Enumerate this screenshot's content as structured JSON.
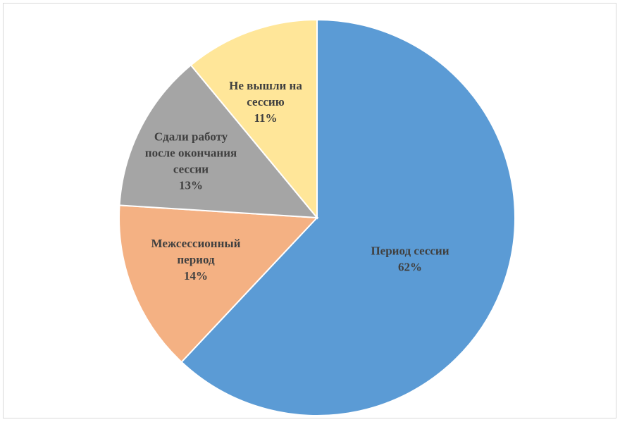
{
  "chart_data": {
    "type": "pie",
    "title": "",
    "slices": [
      {
        "label_lines": [
          "Период сессии"
        ],
        "value": 62,
        "value_label": "62%",
        "color": "#5b9bd5"
      },
      {
        "label_lines": [
          "Межсессионный",
          "период"
        ],
        "value": 14,
        "value_label": "14%",
        "color": "#f4b183"
      },
      {
        "label_lines": [
          "Сдали работу",
          "после окончания",
          "сессии"
        ],
        "value": 13,
        "value_label": "13%",
        "color": "#a5a5a5"
      },
      {
        "label_lines": [
          "Не вышли на",
          "сессию"
        ],
        "value": 11,
        "value_label": "11%",
        "color": "#ffe699"
      }
    ],
    "start": "12 o'clock",
    "direction": "clockwise",
    "legend": "none",
    "data_labels": "inside"
  }
}
